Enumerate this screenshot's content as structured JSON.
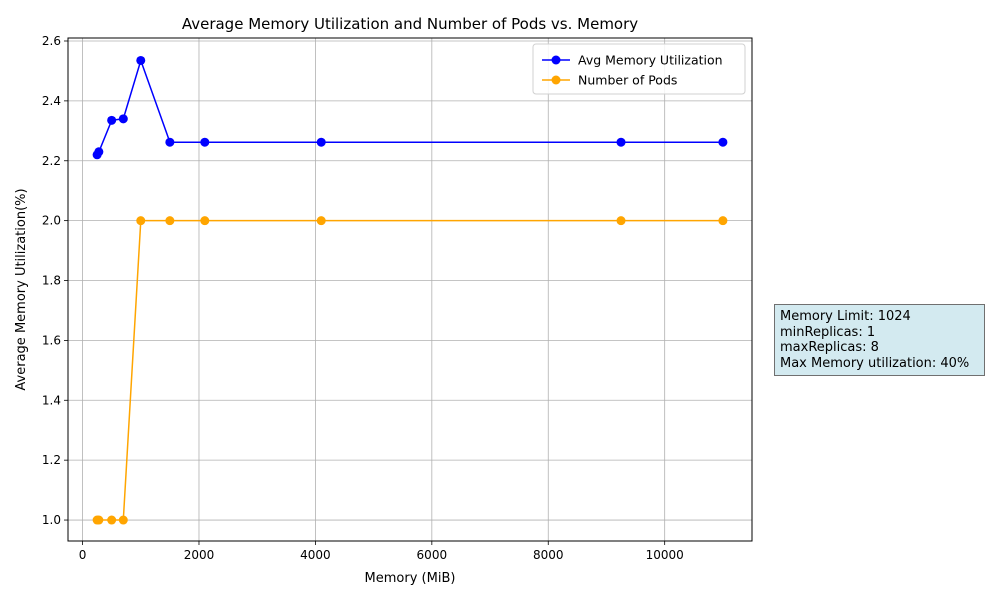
{
  "chart_data": {
    "type": "line",
    "title": "Average Memory Utilization and Number of Pods vs. Memory",
    "xlabel": "Memory (MiB)",
    "ylabel": "Average Memory Utilization(%)",
    "xlim": [
      -250,
      11500
    ],
    "ylim": [
      0.93,
      2.61
    ],
    "xticks": [
      0,
      2000,
      4000,
      6000,
      8000,
      10000
    ],
    "yticks": [
      1.0,
      1.2,
      1.4,
      1.6,
      1.8,
      2.0,
      2.2,
      2.4,
      2.6
    ],
    "xtick_labels": [
      "0",
      "2000",
      "4000",
      "6000",
      "8000",
      "10000"
    ],
    "ytick_labels": [
      "1.0",
      "1.2",
      "1.4",
      "1.6",
      "1.8",
      "2.0",
      "2.2",
      "2.4",
      "2.6"
    ],
    "grid": true,
    "legend_position": "top-right",
    "series": [
      {
        "name": "Avg Memory Utilization",
        "color": "#0000ff",
        "x": [
          250,
          280,
          500,
          700,
          1000,
          1500,
          2100,
          4100,
          9250,
          11000
        ],
        "y": [
          2.22,
          2.23,
          2.335,
          2.34,
          2.535,
          2.262,
          2.262,
          2.262,
          2.262,
          2.262
        ]
      },
      {
        "name": "Number of Pods",
        "color": "#ffa500",
        "x": [
          250,
          280,
          500,
          700,
          1000,
          1500,
          2100,
          4100,
          9250,
          11000
        ],
        "y": [
          1,
          1,
          1,
          1,
          2,
          2,
          2,
          2,
          2,
          2
        ]
      }
    ]
  },
  "info_box": {
    "lines": [
      "Memory Limit: 1024",
      "minReplicas: 1",
      "maxReplicas: 8",
      "Max Memory utilization: 40%"
    ]
  }
}
